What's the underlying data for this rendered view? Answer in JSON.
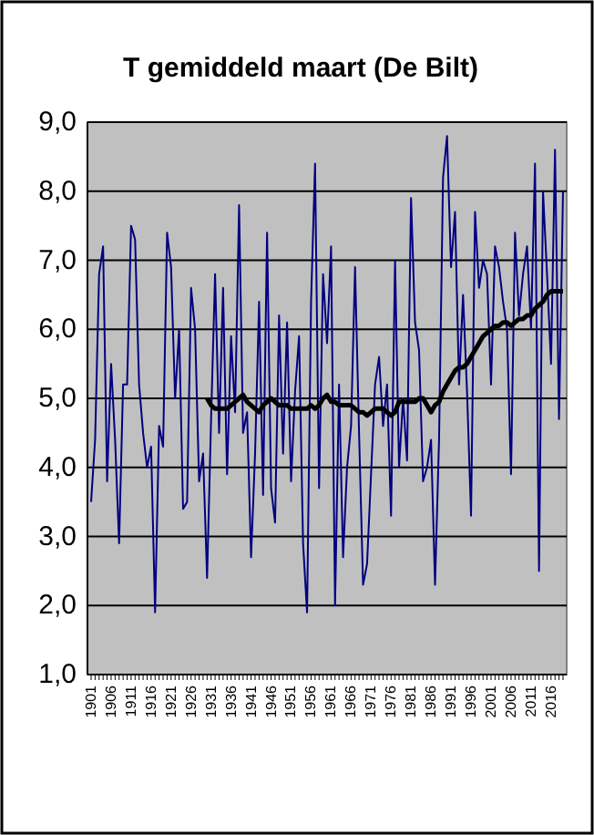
{
  "chart_data": {
    "type": "line",
    "title": "T gemiddeld maart (De Bilt)",
    "categories": [
      "1901",
      null,
      null,
      null,
      null,
      "1906",
      null,
      null,
      null,
      null,
      "1911",
      null,
      null,
      null,
      null,
      "1916",
      null,
      null,
      null,
      null,
      "1921",
      null,
      null,
      null,
      null,
      "1926",
      null,
      null,
      null,
      null,
      "1931",
      null,
      null,
      null,
      null,
      "1936",
      null,
      null,
      null,
      null,
      "1941",
      null,
      null,
      null,
      null,
      "1946",
      null,
      null,
      null,
      null,
      "1951",
      null,
      null,
      null,
      null,
      "1956",
      null,
      null,
      null,
      null,
      "1961",
      null,
      null,
      null,
      null,
      "1966",
      null,
      null,
      null,
      null,
      "1971",
      null,
      null,
      null,
      null,
      "1976",
      null,
      null,
      null,
      null,
      "1981",
      null,
      null,
      null,
      null,
      "1986",
      null,
      null,
      null,
      null,
      "1991",
      null,
      null,
      null,
      null,
      "1996",
      null,
      null,
      null,
      null,
      "2001",
      null,
      null,
      null,
      null,
      "2006",
      null,
      null,
      null,
      null,
      "2011",
      null,
      null,
      null,
      null,
      "2016",
      null,
      null,
      null
    ],
    "series": [
      {
        "color": "#000080",
        "values": [
          3.5,
          4.4,
          6.8,
          7.2,
          3.8,
          5.5,
          4.4,
          2.9,
          5.2,
          5.2,
          7.5,
          7.3,
          5.2,
          4.5,
          4.0,
          4.3,
          1.9,
          4.6,
          4.3,
          7.4,
          6.9,
          5.0,
          6.0,
          3.4,
          3.5,
          6.6,
          6.0,
          3.8,
          4.2,
          2.4,
          4.7,
          6.8,
          4.5,
          6.6,
          3.9,
          5.9,
          4.8,
          7.8,
          4.5,
          4.8,
          2.7,
          4.2,
          6.4,
          3.6,
          7.4,
          3.7,
          3.2,
          6.2,
          4.2,
          6.1,
          3.8,
          5.1,
          5.9,
          2.9,
          1.9,
          6.4,
          8.4,
          3.7,
          6.8,
          5.8,
          7.2,
          2.0,
          5.2,
          2.7,
          4.0,
          4.6,
          6.9,
          4.5,
          2.3,
          2.6,
          3.9,
          5.2,
          5.6,
          4.6,
          5.2,
          3.3,
          7.0,
          4.0,
          5.0,
          4.1,
          7.9,
          6.1,
          5.7,
          3.8,
          4.0,
          4.4,
          2.3,
          4.4,
          8.2,
          8.8,
          6.9,
          7.7,
          5.2,
          6.5,
          5.1,
          3.3,
          7.7,
          6.6,
          7.0,
          6.8,
          5.2,
          7.2,
          6.9,
          6.4,
          6.0,
          3.9,
          7.4,
          6.2,
          6.8,
          7.2,
          6.0,
          8.4,
          2.5,
          8.0,
          6.8,
          5.5,
          8.6,
          4.7,
          8.0
        ]
      },
      {
        "color": "#000000",
        "values": [
          null,
          null,
          null,
          null,
          null,
          null,
          null,
          null,
          null,
          null,
          null,
          null,
          null,
          null,
          null,
          null,
          null,
          null,
          null,
          null,
          null,
          null,
          null,
          null,
          null,
          null,
          null,
          null,
          null,
          5.0,
          4.9,
          4.85,
          4.85,
          4.85,
          4.85,
          4.9,
          4.95,
          5.0,
          5.05,
          4.95,
          4.9,
          4.85,
          4.8,
          4.9,
          4.95,
          5.0,
          4.95,
          4.9,
          4.9,
          4.9,
          4.85,
          4.85,
          4.85,
          4.85,
          4.85,
          4.9,
          4.85,
          4.9,
          5.0,
          5.05,
          4.95,
          4.95,
          4.9,
          4.9,
          4.9,
          4.9,
          4.85,
          4.8,
          4.8,
          4.75,
          4.8,
          4.85,
          4.85,
          4.85,
          4.8,
          4.75,
          4.8,
          4.95,
          4.95,
          4.95,
          4.95,
          4.95,
          5.0,
          5.0,
          4.9,
          4.8,
          4.9,
          4.95,
          5.1,
          5.2,
          5.3,
          5.4,
          5.45,
          5.45,
          5.5,
          5.6,
          5.7,
          5.8,
          5.9,
          5.95,
          6.0,
          6.05,
          6.05,
          6.1,
          6.1,
          6.05,
          6.1,
          6.15,
          6.15,
          6.2,
          6.2,
          6.3,
          6.35,
          6.4,
          6.5,
          6.55,
          6.55,
          6.55,
          6.55
        ]
      }
    ],
    "ylim": [
      1,
      9
    ],
    "yticks": [
      {
        "value": 1,
        "label": "1,0"
      },
      {
        "value": 2,
        "label": "2,0"
      },
      {
        "value": 3,
        "label": "3,0"
      },
      {
        "value": 4,
        "label": "4,0"
      },
      {
        "value": 5,
        "label": "5,0"
      },
      {
        "value": 6,
        "label": "6,0"
      },
      {
        "value": 7,
        "label": "7,0"
      },
      {
        "value": 8,
        "label": "8,0"
      },
      {
        "value": 9,
        "label": "9,0"
      }
    ],
    "grid": "y",
    "marker": "none",
    "line_style": "solid"
  }
}
